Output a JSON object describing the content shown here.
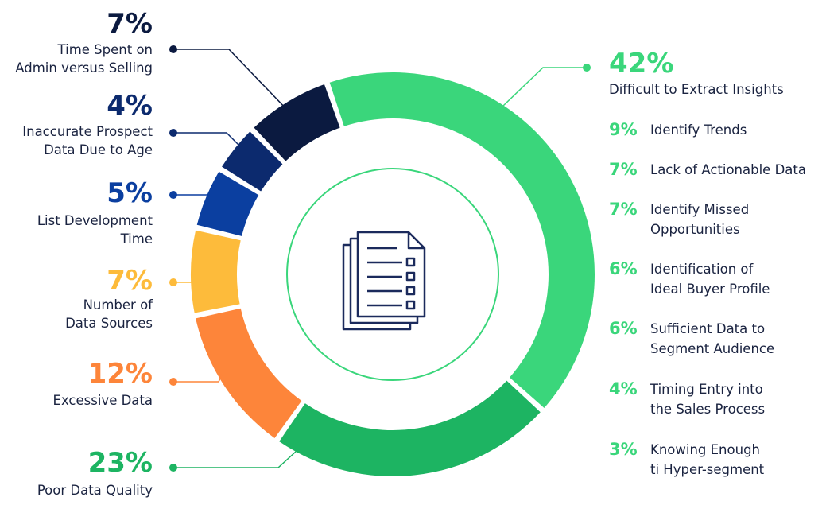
{
  "chart_data": {
    "type": "pie",
    "donut": true,
    "categories": [
      "Difficult to Extract Insights",
      "Poor Data Quality",
      "Excessive Data",
      "Number of\nData Sources",
      "List Development\nTime",
      "Inaccurate Prospect\nData Due to Age",
      "Time Spent on\nAdmin versus Selling"
    ],
    "values": [
      42,
      23,
      12,
      7,
      5,
      4,
      7
    ],
    "value_labels": [
      "42%",
      "23%",
      "12%",
      "7%",
      "5%",
      "4%",
      "7%"
    ],
    "colors": [
      "#3ad67b",
      "#1db462",
      "#fd853a",
      "#fdbb3b",
      "#0b3fa0",
      "#0c2a6e",
      "#0b1a40"
    ],
    "breakdown": {
      "categories": [
        "Identify Trends",
        "Lack of Actionable Data",
        "Identify Missed\nOpportunities",
        "Identification of\nIdeal Buyer Profile",
        "Sufficient Data to\nSegment Audience",
        "Timing Entry into\nthe Sales Process",
        "Knowing Enough\nti Hyper-segment"
      ],
      "values": [
        9,
        7,
        7,
        6,
        6,
        4,
        3
      ],
      "value_labels": [
        "9%",
        "7%",
        "7%",
        "6%",
        "6%",
        "4%",
        "3%"
      ],
      "color": "#3ad67b"
    }
  }
}
